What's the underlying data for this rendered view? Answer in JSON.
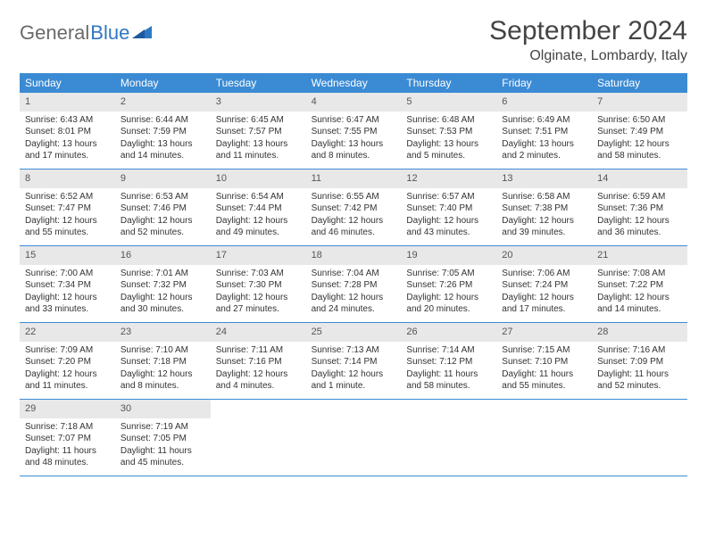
{
  "brand": {
    "part1": "General",
    "part2": "Blue"
  },
  "title": "September 2024",
  "location": "Olginate, Lombardy, Italy",
  "colors": {
    "header_bg": "#3b8bd4",
    "header_text": "#ffffff",
    "daynum_bg": "#e8e8e8",
    "border": "#3b8bd4",
    "logo_gray": "#6a6a6a",
    "logo_blue": "#2f78c2"
  },
  "day_headers": [
    "Sunday",
    "Monday",
    "Tuesday",
    "Wednesday",
    "Thursday",
    "Friday",
    "Saturday"
  ],
  "weeks": [
    [
      {
        "n": "1",
        "sr": "Sunrise: 6:43 AM",
        "ss": "Sunset: 8:01 PM",
        "d1": "Daylight: 13 hours",
        "d2": "and 17 minutes."
      },
      {
        "n": "2",
        "sr": "Sunrise: 6:44 AM",
        "ss": "Sunset: 7:59 PM",
        "d1": "Daylight: 13 hours",
        "d2": "and 14 minutes."
      },
      {
        "n": "3",
        "sr": "Sunrise: 6:45 AM",
        "ss": "Sunset: 7:57 PM",
        "d1": "Daylight: 13 hours",
        "d2": "and 11 minutes."
      },
      {
        "n": "4",
        "sr": "Sunrise: 6:47 AM",
        "ss": "Sunset: 7:55 PM",
        "d1": "Daylight: 13 hours",
        "d2": "and 8 minutes."
      },
      {
        "n": "5",
        "sr": "Sunrise: 6:48 AM",
        "ss": "Sunset: 7:53 PM",
        "d1": "Daylight: 13 hours",
        "d2": "and 5 minutes."
      },
      {
        "n": "6",
        "sr": "Sunrise: 6:49 AM",
        "ss": "Sunset: 7:51 PM",
        "d1": "Daylight: 13 hours",
        "d2": "and 2 minutes."
      },
      {
        "n": "7",
        "sr": "Sunrise: 6:50 AM",
        "ss": "Sunset: 7:49 PM",
        "d1": "Daylight: 12 hours",
        "d2": "and 58 minutes."
      }
    ],
    [
      {
        "n": "8",
        "sr": "Sunrise: 6:52 AM",
        "ss": "Sunset: 7:47 PM",
        "d1": "Daylight: 12 hours",
        "d2": "and 55 minutes."
      },
      {
        "n": "9",
        "sr": "Sunrise: 6:53 AM",
        "ss": "Sunset: 7:46 PM",
        "d1": "Daylight: 12 hours",
        "d2": "and 52 minutes."
      },
      {
        "n": "10",
        "sr": "Sunrise: 6:54 AM",
        "ss": "Sunset: 7:44 PM",
        "d1": "Daylight: 12 hours",
        "d2": "and 49 minutes."
      },
      {
        "n": "11",
        "sr": "Sunrise: 6:55 AM",
        "ss": "Sunset: 7:42 PM",
        "d1": "Daylight: 12 hours",
        "d2": "and 46 minutes."
      },
      {
        "n": "12",
        "sr": "Sunrise: 6:57 AM",
        "ss": "Sunset: 7:40 PM",
        "d1": "Daylight: 12 hours",
        "d2": "and 43 minutes."
      },
      {
        "n": "13",
        "sr": "Sunrise: 6:58 AM",
        "ss": "Sunset: 7:38 PM",
        "d1": "Daylight: 12 hours",
        "d2": "and 39 minutes."
      },
      {
        "n": "14",
        "sr": "Sunrise: 6:59 AM",
        "ss": "Sunset: 7:36 PM",
        "d1": "Daylight: 12 hours",
        "d2": "and 36 minutes."
      }
    ],
    [
      {
        "n": "15",
        "sr": "Sunrise: 7:00 AM",
        "ss": "Sunset: 7:34 PM",
        "d1": "Daylight: 12 hours",
        "d2": "and 33 minutes."
      },
      {
        "n": "16",
        "sr": "Sunrise: 7:01 AM",
        "ss": "Sunset: 7:32 PM",
        "d1": "Daylight: 12 hours",
        "d2": "and 30 minutes."
      },
      {
        "n": "17",
        "sr": "Sunrise: 7:03 AM",
        "ss": "Sunset: 7:30 PM",
        "d1": "Daylight: 12 hours",
        "d2": "and 27 minutes."
      },
      {
        "n": "18",
        "sr": "Sunrise: 7:04 AM",
        "ss": "Sunset: 7:28 PM",
        "d1": "Daylight: 12 hours",
        "d2": "and 24 minutes."
      },
      {
        "n": "19",
        "sr": "Sunrise: 7:05 AM",
        "ss": "Sunset: 7:26 PM",
        "d1": "Daylight: 12 hours",
        "d2": "and 20 minutes."
      },
      {
        "n": "20",
        "sr": "Sunrise: 7:06 AM",
        "ss": "Sunset: 7:24 PM",
        "d1": "Daylight: 12 hours",
        "d2": "and 17 minutes."
      },
      {
        "n": "21",
        "sr": "Sunrise: 7:08 AM",
        "ss": "Sunset: 7:22 PM",
        "d1": "Daylight: 12 hours",
        "d2": "and 14 minutes."
      }
    ],
    [
      {
        "n": "22",
        "sr": "Sunrise: 7:09 AM",
        "ss": "Sunset: 7:20 PM",
        "d1": "Daylight: 12 hours",
        "d2": "and 11 minutes."
      },
      {
        "n": "23",
        "sr": "Sunrise: 7:10 AM",
        "ss": "Sunset: 7:18 PM",
        "d1": "Daylight: 12 hours",
        "d2": "and 8 minutes."
      },
      {
        "n": "24",
        "sr": "Sunrise: 7:11 AM",
        "ss": "Sunset: 7:16 PM",
        "d1": "Daylight: 12 hours",
        "d2": "and 4 minutes."
      },
      {
        "n": "25",
        "sr": "Sunrise: 7:13 AM",
        "ss": "Sunset: 7:14 PM",
        "d1": "Daylight: 12 hours",
        "d2": "and 1 minute."
      },
      {
        "n": "26",
        "sr": "Sunrise: 7:14 AM",
        "ss": "Sunset: 7:12 PM",
        "d1": "Daylight: 11 hours",
        "d2": "and 58 minutes."
      },
      {
        "n": "27",
        "sr": "Sunrise: 7:15 AM",
        "ss": "Sunset: 7:10 PM",
        "d1": "Daylight: 11 hours",
        "d2": "and 55 minutes."
      },
      {
        "n": "28",
        "sr": "Sunrise: 7:16 AM",
        "ss": "Sunset: 7:09 PM",
        "d1": "Daylight: 11 hours",
        "d2": "and 52 minutes."
      }
    ],
    [
      {
        "n": "29",
        "sr": "Sunrise: 7:18 AM",
        "ss": "Sunset: 7:07 PM",
        "d1": "Daylight: 11 hours",
        "d2": "and 48 minutes."
      },
      {
        "n": "30",
        "sr": "Sunrise: 7:19 AM",
        "ss": "Sunset: 7:05 PM",
        "d1": "Daylight: 11 hours",
        "d2": "and 45 minutes."
      },
      null,
      null,
      null,
      null,
      null
    ]
  ]
}
